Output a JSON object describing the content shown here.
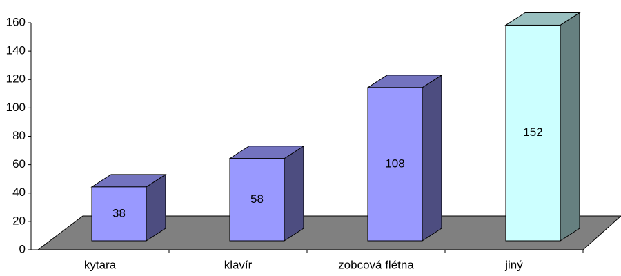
{
  "chart_data": {
    "type": "bar3d",
    "categories": [
      "kytara",
      "klavír",
      "zobcová flétna",
      "jiný"
    ],
    "values": [
      38,
      58,
      108,
      152
    ],
    "colors": [
      "#9999ff",
      "#9999ff",
      "#9999ff",
      "#ccffff"
    ],
    "ylim": [
      0,
      160
    ],
    "yticks": [
      0,
      20,
      40,
      60,
      80,
      100,
      120,
      140,
      160
    ],
    "floor_color": "#808080"
  }
}
